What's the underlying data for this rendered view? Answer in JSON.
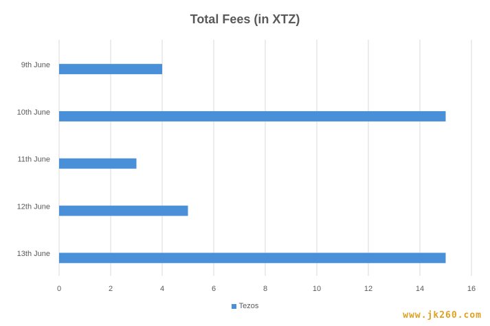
{
  "chart_data": {
    "type": "bar",
    "orientation": "horizontal",
    "title": "Total Fees (in XTZ)",
    "categories": [
      "9th June",
      "10th June",
      "11th June",
      "12th June",
      "13th June"
    ],
    "series": [
      {
        "name": "Tezos",
        "values": [
          4,
          15,
          3,
          5,
          15
        ],
        "color": "#4a90d9"
      }
    ],
    "xlim": [
      0,
      16
    ],
    "xticks": [
      "0",
      "2",
      "4",
      "6",
      "8",
      "10",
      "12",
      "14",
      "16"
    ],
    "grid": true,
    "legend_position": "bottom"
  },
  "watermark": "www.jk260.com"
}
